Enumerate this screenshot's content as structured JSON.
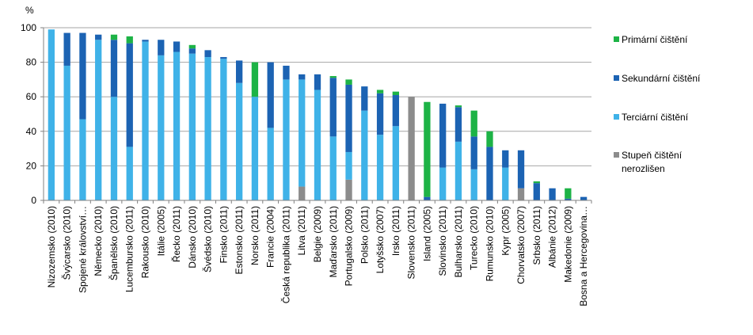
{
  "chart_data": {
    "type": "bar",
    "stacked": true,
    "y_unit": "%",
    "ylim": [
      0,
      100
    ],
    "y_ticks": [
      0,
      20,
      40,
      60,
      80,
      100
    ],
    "grid": true,
    "legend_position": "right",
    "categories": [
      "Nizozemsko (2010)",
      "Švýcarsko (2010)",
      "Spojené království…",
      "Německo (2010)",
      "Španělsko (2010)",
      "Lucembursko (2011)",
      "Rakousko (2010)",
      "Itálie (2005)",
      "Řecko (2011)",
      "Dánsko (2010)",
      "Švédsko (2010)",
      "Finsko (2011)",
      "Estonsko (2011)",
      "Norsko (2011)",
      "Francie (2004)",
      "Česká republika (2011)",
      "Litva (2011)",
      "Belgie (2009)",
      "Maďarsko (2011)",
      "Portugalsko (2009)",
      "Polsko (2011)",
      "Lotyšsko (2007)",
      "Irsko (2011)",
      "Slovensko (2011)",
      "Island (2005)",
      "Slovinsko (2011)",
      "Bulharsko (2011)",
      "Turecko (2010)",
      "Rumunsko (2010)",
      "Kypr (2005)",
      "Chorvatsko (2007)",
      "Srbsko (2011)",
      "Albánie (2012)",
      "Makedonie (2009)",
      "Bosna a Hercegovina…"
    ],
    "series": [
      {
        "name": "Stupeň čištění nerozlišen",
        "color": "#8c8c8c",
        "values": [
          0,
          0,
          0,
          0,
          0,
          0,
          0,
          0,
          0,
          0,
          0,
          0,
          0,
          0,
          0,
          0,
          8,
          0,
          0,
          12,
          0,
          0,
          0,
          60,
          0,
          0,
          0,
          0,
          0,
          0,
          7,
          0,
          0,
          0,
          0
        ]
      },
      {
        "name": "Terciární čištění",
        "color": "#3fb2e8",
        "values": [
          99,
          78,
          47,
          93,
          60,
          31,
          92,
          84,
          86,
          85,
          83,
          82,
          68,
          60,
          42,
          70,
          62,
          64,
          37,
          16,
          52,
          38,
          43,
          0,
          0,
          19,
          34,
          18,
          0,
          19,
          0,
          0,
          0,
          0,
          0
        ]
      },
      {
        "name": "Sekundární čištění",
        "color": "#1c63b3",
        "values": [
          0,
          19,
          50,
          3,
          33,
          60,
          1,
          9,
          6,
          3,
          4,
          1,
          13,
          0,
          38,
          8,
          3,
          9,
          34,
          39,
          14,
          24,
          18,
          0,
          2,
          37,
          20,
          19,
          31,
          10,
          22,
          10,
          7,
          1,
          2
        ]
      },
      {
        "name": "Primární čištění",
        "color": "#1db346",
        "values": [
          0,
          0,
          0,
          0,
          3,
          4,
          0,
          0,
          0,
          2,
          0,
          0,
          0,
          20,
          0,
          0,
          0,
          0,
          1,
          3,
          0,
          2,
          2,
          0,
          55,
          0,
          1,
          15,
          9,
          0,
          0,
          1,
          0,
          6,
          0
        ]
      }
    ],
    "legend": [
      {
        "lines": [
          "Primární čištění"
        ],
        "color": "#1db346"
      },
      {
        "lines": [
          "Sekundární čištění"
        ],
        "color": "#1c63b3"
      },
      {
        "lines": [
          "Terciární čištění"
        ],
        "color": "#3fb2e8"
      },
      {
        "lines": [
          "Stupeň čištění",
          "nerozlišen"
        ],
        "color": "#8c8c8c"
      }
    ]
  }
}
